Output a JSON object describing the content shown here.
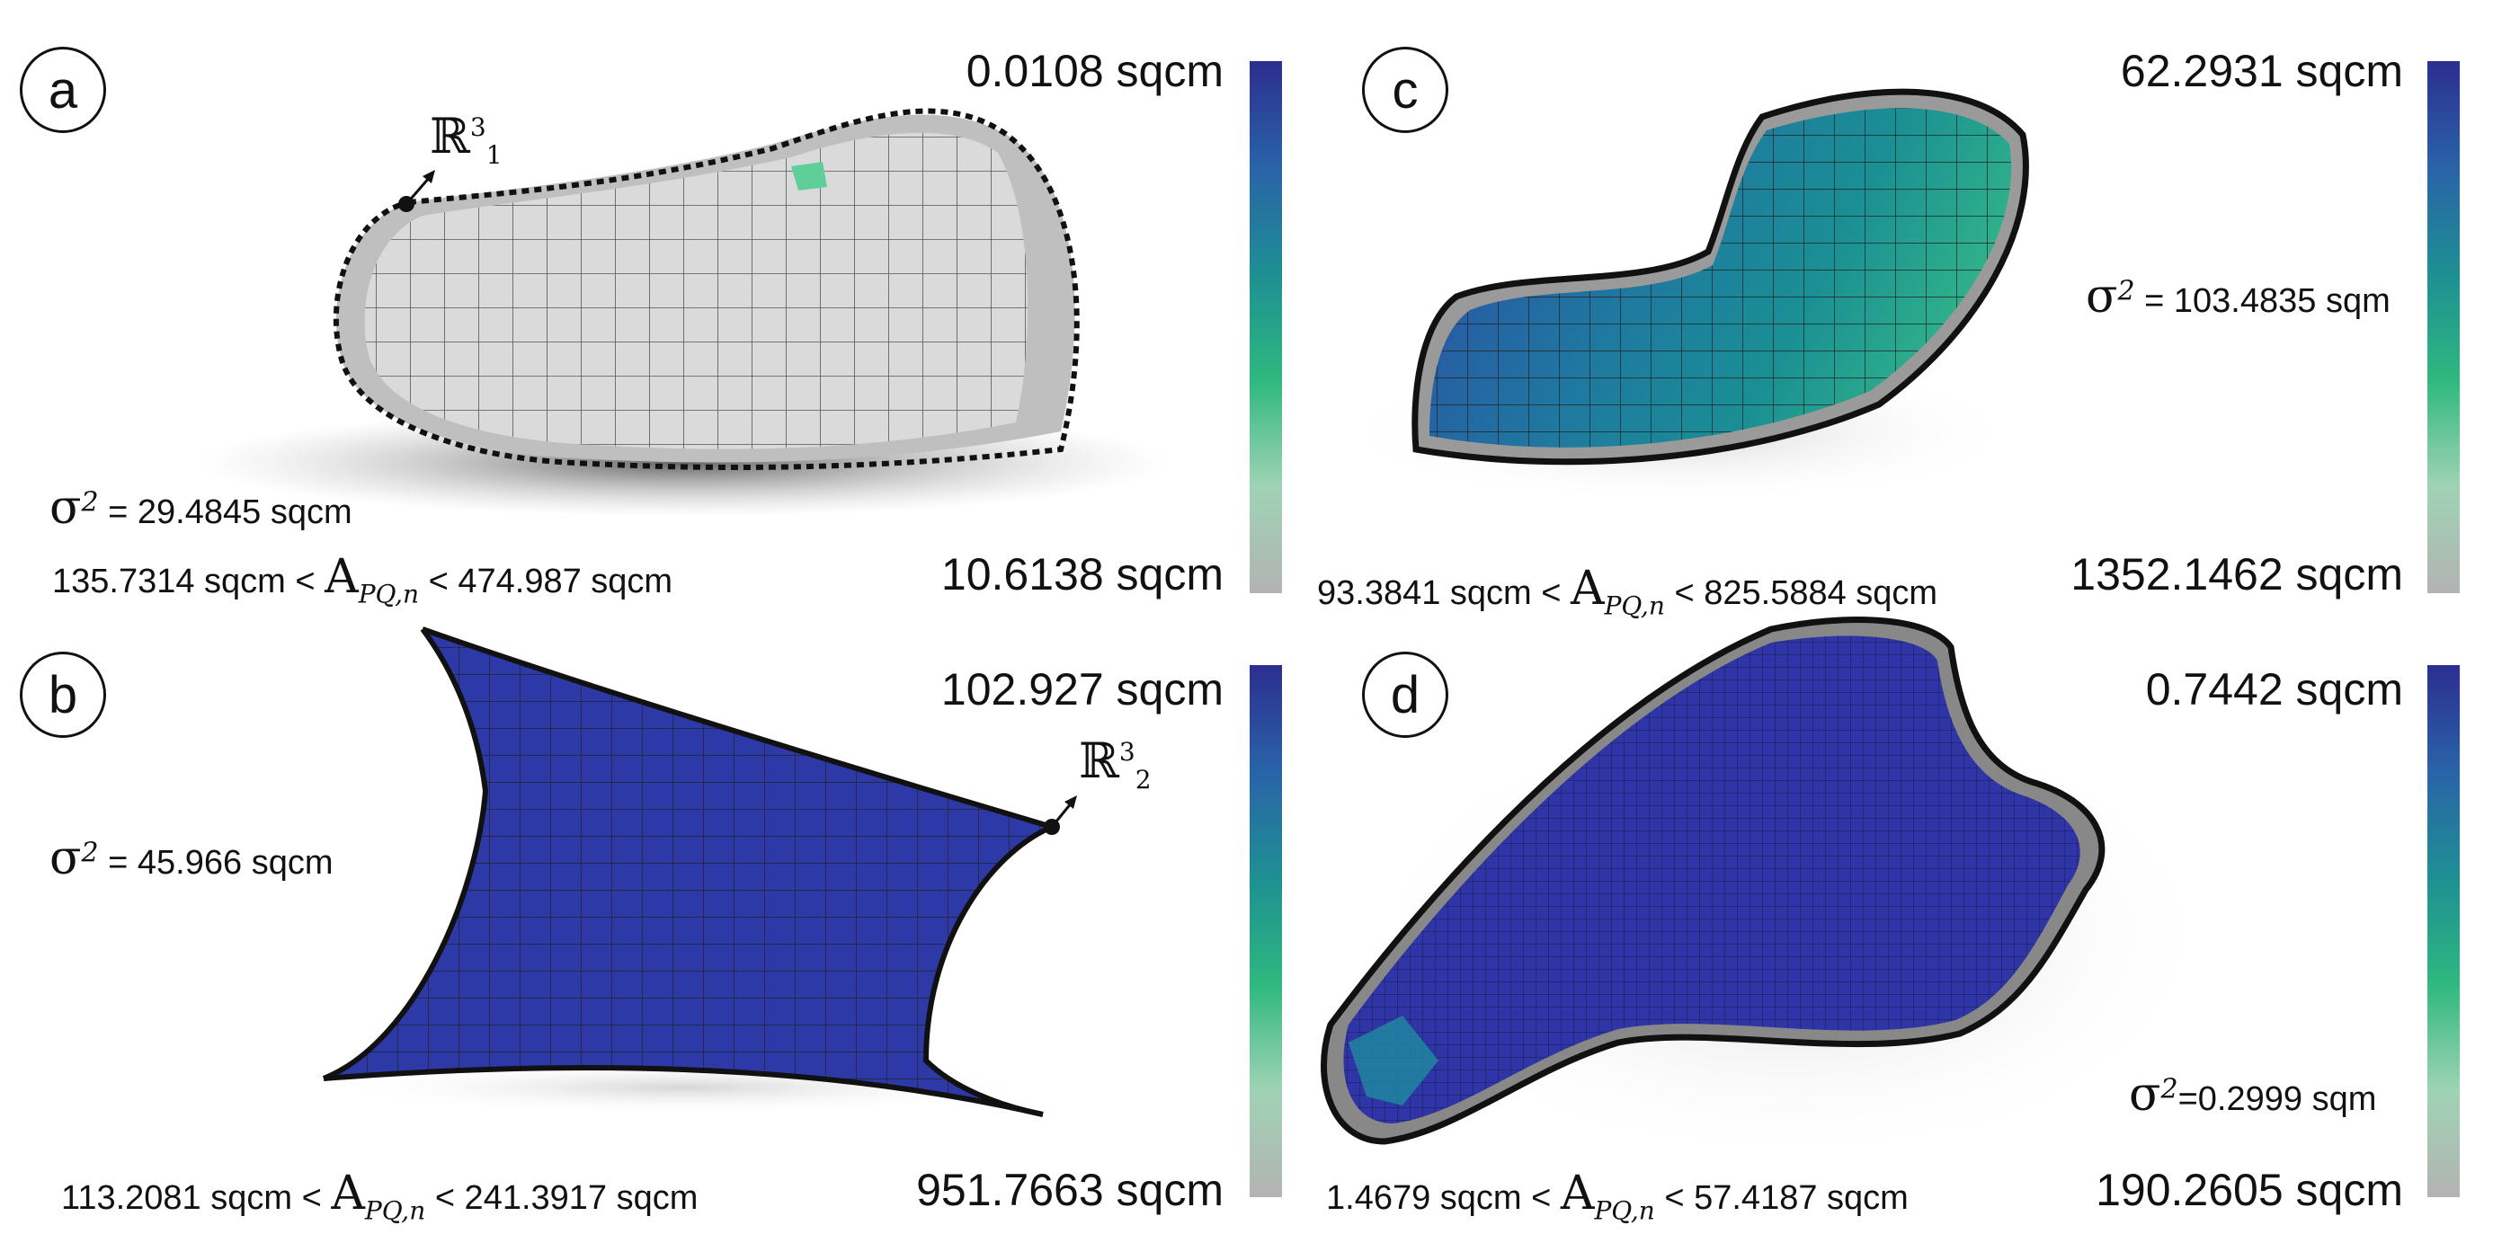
{
  "colormap": {
    "top": "#2c2e8f",
    "stops": [
      "#2c2e8f",
      "#2a63a8",
      "#1e8f93",
      "#2fb87f",
      "#9fd3b4",
      "#b3b3b3"
    ],
    "bottom": "#b3b3b3"
  },
  "panels": [
    {
      "label": "a",
      "max_value": "0.0108 sqcm",
      "min_value": "10.6138 sqcm",
      "sigma_symbol": "σ",
      "sigma_exp": "2",
      "sigma_value": "= 29.4845 sqcm",
      "range_low": "135.7314 sqcm <",
      "range_high": "< 474.987 sqcm",
      "point_label": "ℝ",
      "point_sup": "3",
      "point_sub": "1"
    },
    {
      "label": "b",
      "max_value": "102.927 sqcm",
      "min_value": "951.7663 sqcm",
      "sigma_symbol": "σ",
      "sigma_exp": "2",
      "sigma_value": "= 45.966 sqcm",
      "range_low": "113.2081 sqcm <",
      "range_high": "< 241.3917 sqcm",
      "point_label": "ℝ",
      "point_sup": "3",
      "point_sub": "2"
    },
    {
      "label": "c",
      "max_value": "62.2931 sqcm",
      "min_value": "1352.1462 sqcm",
      "sigma_symbol": "σ",
      "sigma_exp": "2",
      "sigma_value": "= 103.4835 sqm",
      "range_low": "93.3841 sqcm <",
      "range_high": "< 825.5884 sqcm"
    },
    {
      "label": "d",
      "max_value": "0.7442 sqcm",
      "min_value": "190.2605 sqcm",
      "sigma_symbol": "σ",
      "sigma_exp": "2",
      "sigma_value": "=0.2999 sqm",
      "range_low": "1.4679 sqcm <",
      "range_high": "< 57.4187 sqcm"
    }
  ],
  "area_symbol": {
    "letter": "A",
    "subscript_ab": "PQ,n",
    "subscript_cd": "PQ,n"
  }
}
